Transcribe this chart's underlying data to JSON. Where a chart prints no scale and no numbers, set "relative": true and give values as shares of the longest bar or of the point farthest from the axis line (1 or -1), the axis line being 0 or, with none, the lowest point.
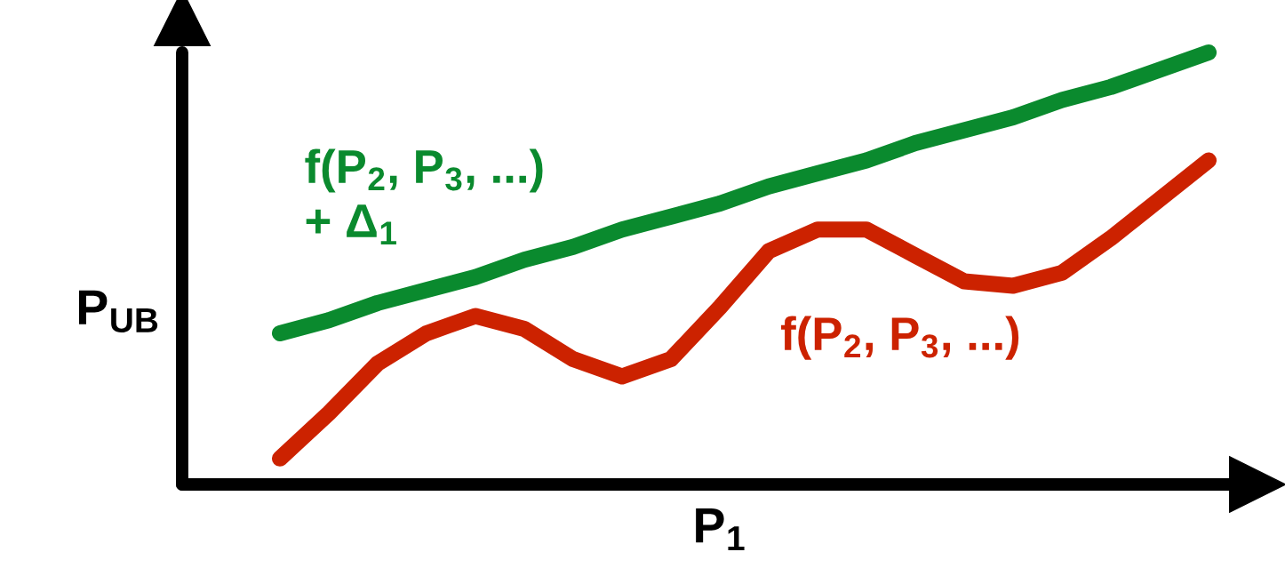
{
  "chart_data": {
    "type": "line",
    "relative": true,
    "xlabel": "P$_{1}$",
    "ylabel": "P$_{UB}$",
    "categories": [
      null,
      null,
      null,
      null,
      null,
      null,
      null,
      null,
      null,
      null,
      null,
      null,
      null,
      null,
      null,
      null,
      null,
      null,
      null,
      null,
      null,
      null,
      null
    ],
    "series": [
      {
        "name": "f(P$_{2}$, P$_{3}$, ...)\n+ Δ$_{1}$",
        "color": "#0a8a2e",
        "values": [
          null,
          null,
          0.35,
          0.38,
          0.42,
          0.45,
          0.48,
          0.52,
          0.55,
          0.59,
          0.62,
          0.65,
          0.69,
          0.72,
          0.75,
          0.79,
          0.82,
          0.85,
          0.89,
          0.92,
          0.96,
          1,
          null
        ]
      },
      {
        "name": "f(P$_{2}$, P$_{3}$, ...)",
        "color": "#cc2200",
        "values": [
          null,
          null,
          0.06,
          0.165,
          0.28,
          0.35,
          0.39,
          0.36,
          0.29,
          0.25,
          0.29,
          0.41,
          0.54,
          0.59,
          0.59,
          0.53,
          0.47,
          0.46,
          0.49,
          0.57,
          0.66,
          0.75,
          null
        ]
      }
    ],
    "legend": false,
    "line_style": "solid"
  }
}
